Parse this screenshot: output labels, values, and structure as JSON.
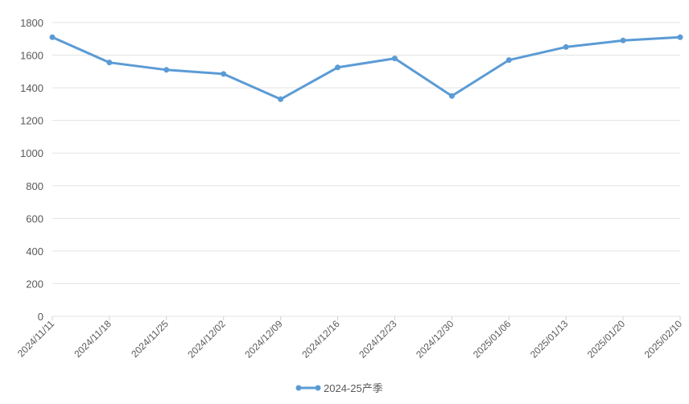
{
  "chart_data": {
    "type": "line",
    "categories": [
      "2024/11/11",
      "2024/11/18",
      "2024/11/25",
      "2024/12/02",
      "2024/12/09",
      "2024/12/16",
      "2024/12/23",
      "2024/12/30",
      "2025/01/06",
      "2025/01/13",
      "2025/01/20",
      "2025/02/10"
    ],
    "series": [
      {
        "name": "2024-25产季",
        "color": "#5b9bd5",
        "values": [
          1710,
          1555,
          1510,
          1485,
          1330,
          1525,
          1580,
          1350,
          1570,
          1650,
          1690,
          1710
        ]
      }
    ],
    "ylim": [
      0,
      1800
    ],
    "yticks": [
      0,
      200,
      400,
      600,
      800,
      1000,
      1200,
      1400,
      1600,
      1800
    ],
    "grid": true,
    "legend": "bottom"
  }
}
